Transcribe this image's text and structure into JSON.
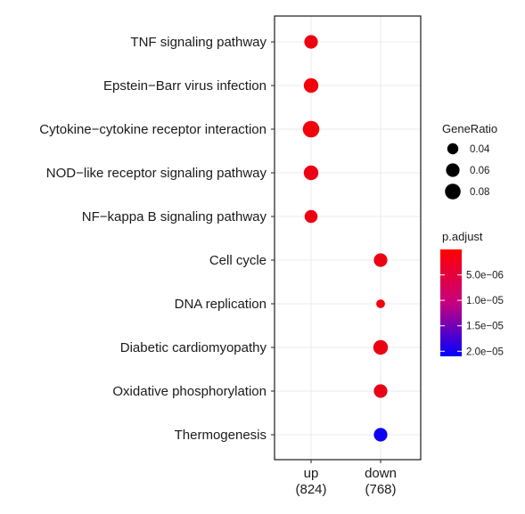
{
  "chart_data": {
    "type": "scatter",
    "categories_y": [
      "TNF signaling pathway",
      "Epstein−Barr virus infection",
      "Cytokine−cytokine receptor interaction",
      "NOD−like receptor signaling pathway",
      "NF−kappa B signaling pathway",
      "Cell cycle",
      "DNA replication",
      "Diabetic cardiomyopathy",
      "Oxidative phosphorylation",
      "Thermogenesis"
    ],
    "categories_x": [
      {
        "label": "up",
        "count": "(824)"
      },
      {
        "label": "down",
        "count": "(768)"
      }
    ],
    "points": [
      {
        "x": 0,
        "y": 0,
        "gene_ratio": 0.06,
        "p_adjust": 1.5e-06
      },
      {
        "x": 0,
        "y": 1,
        "gene_ratio": 0.07,
        "p_adjust": 1e-06
      },
      {
        "x": 0,
        "y": 2,
        "gene_ratio": 0.09,
        "p_adjust": 1e-06
      },
      {
        "x": 0,
        "y": 3,
        "gene_ratio": 0.07,
        "p_adjust": 1.5e-06
      },
      {
        "x": 0,
        "y": 4,
        "gene_ratio": 0.055,
        "p_adjust": 1.5e-06
      },
      {
        "x": 1,
        "y": 5,
        "gene_ratio": 0.06,
        "p_adjust": 1.5e-06
      },
      {
        "x": 1,
        "y": 6,
        "gene_ratio": 0.025,
        "p_adjust": 1e-06
      },
      {
        "x": 1,
        "y": 7,
        "gene_ratio": 0.07,
        "p_adjust": 1.5e-06
      },
      {
        "x": 1,
        "y": 8,
        "gene_ratio": 0.06,
        "p_adjust": 2e-06
      },
      {
        "x": 1,
        "y": 9,
        "gene_ratio": 0.06,
        "p_adjust": 2e-05
      }
    ],
    "size_legend": {
      "title": "GeneRatio",
      "values": [
        0.04,
        0.06,
        0.08
      ],
      "labels": [
        "0.04",
        "0.06",
        "0.08"
      ]
    },
    "color_legend": {
      "title": "p.adjust",
      "range": [
        0,
        2.1e-05
      ],
      "ticks": [
        5e-06,
        1e-05,
        1.5e-05,
        2e-05
      ],
      "tick_labels": [
        "5.0e−06",
        "1.0e−05",
        "1.5e−05",
        "2.0e−05"
      ],
      "low_color": "#ff0000",
      "high_color": "#0000ff"
    },
    "grid": true
  }
}
